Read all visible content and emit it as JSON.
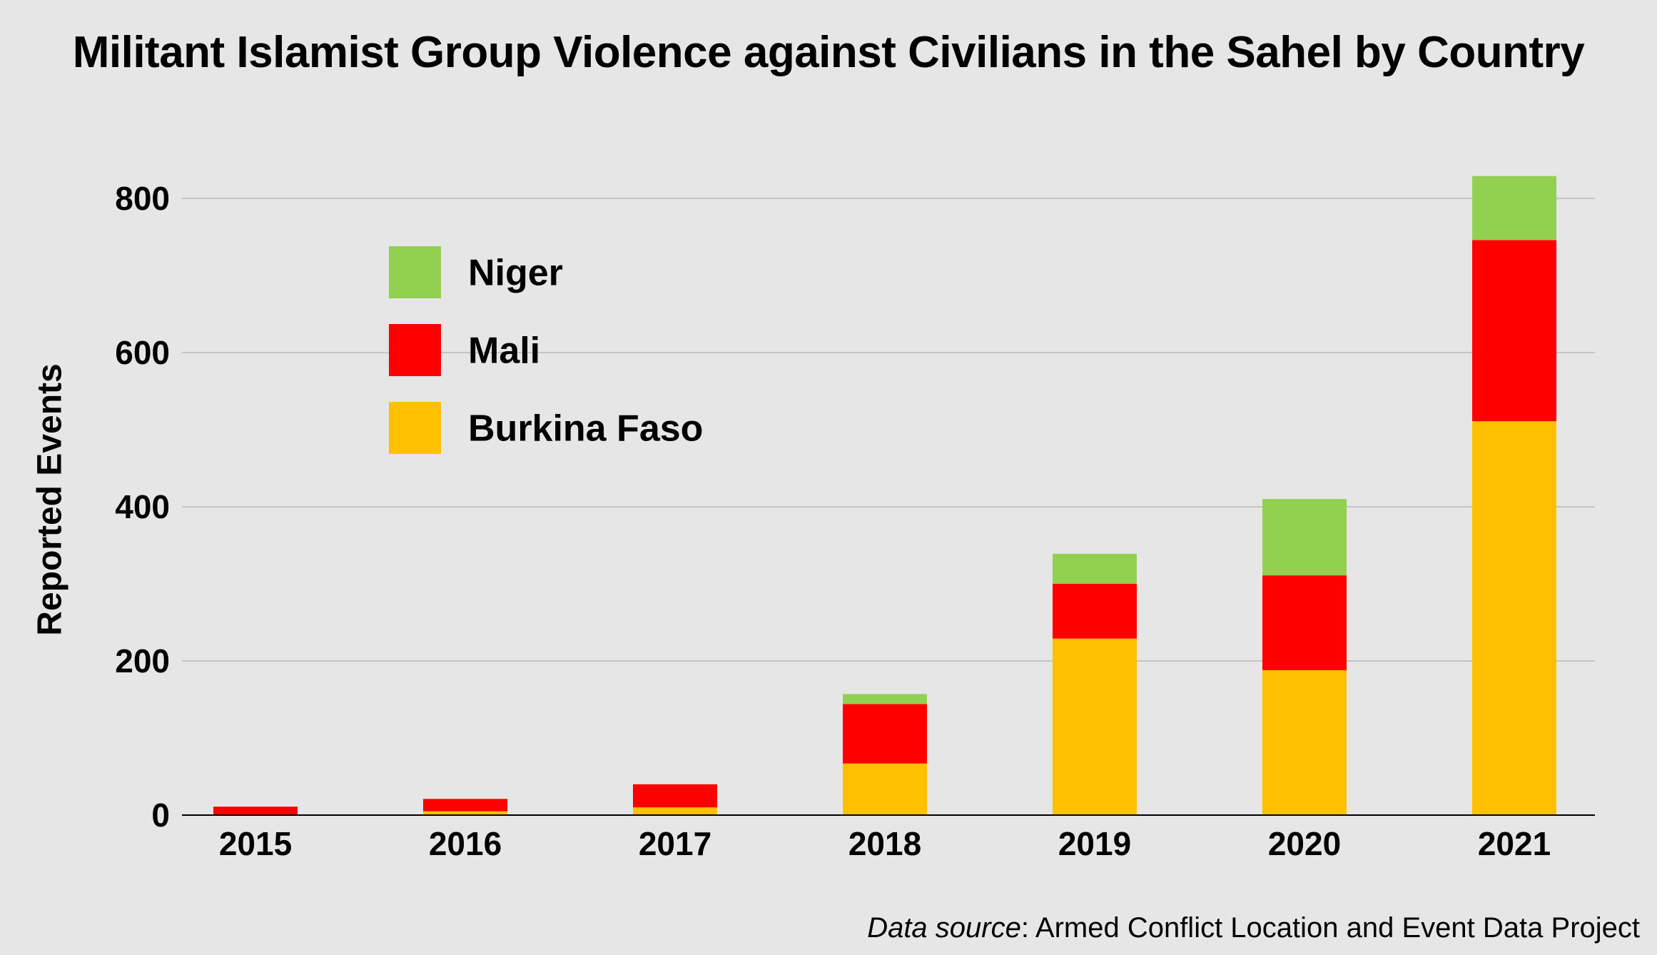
{
  "title": "Militant Islamist Group Violence against Civilians in the Sahel by Country",
  "source": {
    "label": "Data source",
    "separator": ": ",
    "text": "Armed Conflict Location and Event Data Project"
  },
  "chart_data": {
    "type": "bar",
    "stacked": true,
    "title": "Militant Islamist Group Violence against Civilians in the Sahel by Country",
    "xlabel": "",
    "ylabel": "Reported Events",
    "categories": [
      "2015",
      "2016",
      "2017",
      "2018",
      "2019",
      "2020",
      "2021"
    ],
    "series": [
      {
        "name": "Burkina Faso",
        "color": "#ffc000",
        "values": [
          0,
          5,
          10,
          67,
          229,
          188,
          511
        ]
      },
      {
        "name": "Mali",
        "color": "#ff0000",
        "values": [
          11,
          16,
          30,
          77,
          71,
          123,
          235
        ]
      },
      {
        "name": "Niger",
        "color": "#92d050",
        "values": [
          0,
          0,
          0,
          13,
          39,
          99,
          83
        ]
      }
    ],
    "ylim": [
      0,
      880
    ],
    "yticks": [
      0,
      200,
      400,
      600,
      800
    ],
    "grid": true,
    "legend": {
      "position": "top-left",
      "order": [
        "Niger",
        "Mali",
        "Burkina Faso"
      ]
    }
  },
  "colors": {
    "background": "#e6e6e6",
    "gridline": "#c4c4c4",
    "axis": "#000000"
  }
}
